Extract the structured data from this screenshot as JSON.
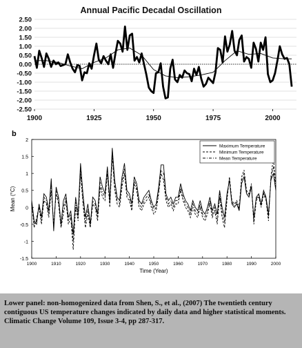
{
  "chart_data": [
    {
      "type": "line",
      "title": "Annual Pacific Decadal Oscillation",
      "xlabel": "",
      "ylabel": "",
      "xlim": [
        1900,
        2010
      ],
      "ylim": [
        -2.5,
        2.5
      ],
      "x_ticks": [
        "1900",
        "1925",
        "1950",
        "1975",
        "2000"
      ],
      "x_tick_values": [
        1900,
        1925,
        1950,
        1975,
        2000
      ],
      "y_ticks": [
        "2.50",
        "2.00",
        "1.50",
        "1.00",
        "0.50",
        "0.00",
        "-0.50",
        "-1.00",
        "-1.50",
        "-2.00",
        "-2.50"
      ],
      "y_tick_values": [
        2.5,
        2.0,
        1.5,
        1.0,
        0.5,
        0.0,
        -0.5,
        -1.0,
        -1.5,
        -2.0,
        -2.5
      ],
      "grid": "horizontal",
      "colors": {
        "annual": "#000000",
        "smoothed": "#000000",
        "zero": "#000000"
      },
      "series": [
        {
          "style": "thick",
          "x": [
            1900,
            1901,
            1902,
            1903,
            1904,
            1905,
            1906,
            1907,
            1908,
            1909,
            1910,
            1911,
            1912,
            1913,
            1914,
            1915,
            1916,
            1917,
            1918,
            1919,
            1920,
            1921,
            1922,
            1923,
            1924,
            1925,
            1926,
            1927,
            1928,
            1929,
            1930,
            1931,
            1932,
            1933,
            1934,
            1935,
            1936,
            1937,
            1938,
            1939,
            1940,
            1941,
            1942,
            1943,
            1944,
            1945,
            1946,
            1947,
            1948,
            1949,
            1950,
            1951,
            1952,
            1953,
            1954,
            1955,
            1956,
            1957,
            1958,
            1959,
            1960,
            1961,
            1962,
            1963,
            1964,
            1965,
            1966,
            1967,
            1968,
            1969,
            1970,
            1971,
            1972,
            1973,
            1974,
            1975,
            1976,
            1977,
            1978,
            1979,
            1980,
            1981,
            1982,
            1983,
            1984,
            1985,
            1986,
            1987,
            1988,
            1989,
            1990,
            1991,
            1992,
            1993,
            1994,
            1995,
            1996,
            1997,
            1998,
            1999,
            2000,
            2001,
            2002,
            2003,
            2004,
            2005,
            2006,
            2007,
            2008
          ],
          "values": [
            0.45,
            -0.2,
            0.75,
            0.35,
            -0.15,
            0.6,
            0.3,
            -0.15,
            0.2,
            0.0,
            0.1,
            -0.1,
            -0.05,
            0.0,
            0.55,
            0.1,
            -0.25,
            -0.45,
            -0.05,
            -0.1,
            -0.9,
            -0.45,
            -0.5,
            0.05,
            -0.25,
            0.5,
            1.15,
            0.25,
            0.05,
            0.45,
            0.2,
            0.0,
            0.55,
            -0.2,
            0.6,
            1.3,
            1.15,
            0.7,
            2.1,
            0.8,
            1.6,
            1.7,
            0.2,
            0.4,
            0.1,
            0.6,
            0.0,
            -0.6,
            -1.3,
            -1.5,
            -1.6,
            -0.5,
            -0.45,
            0.05,
            -1.25,
            -1.9,
            -1.85,
            -0.25,
            0.25,
            -0.85,
            -1.0,
            -0.6,
            -0.75,
            -0.35,
            -0.5,
            -0.55,
            -0.95,
            -0.25,
            -0.6,
            -0.15,
            -0.8,
            -1.25,
            -1.1,
            -0.75,
            -0.9,
            -1.05,
            -0.45,
            0.9,
            0.8,
            0.1,
            1.55,
            0.7,
            1.1,
            1.85,
            0.75,
            0.5,
            1.35,
            1.6,
            0.15,
            0.4,
            0.3,
            -0.2,
            1.2,
            0.85,
            0.15,
            1.2,
            0.8,
            1.5,
            -0.55,
            -1.0,
            -0.9,
            -0.5,
            0.2,
            1.0,
            0.55,
            0.3,
            0.35,
            0.0,
            -1.25
          ]
        },
        {
          "style": "thin",
          "x": [
            1900,
            1905,
            1910,
            1915,
            1920,
            1925,
            1930,
            1935,
            1940,
            1945,
            1950,
            1955,
            1960,
            1965,
            1970,
            1975,
            1980,
            1985,
            1990,
            1995,
            2000,
            2005,
            2008
          ],
          "values": [
            0.2,
            0.2,
            0.1,
            -0.1,
            -0.25,
            0.1,
            0.35,
            0.8,
            0.9,
            0.5,
            -0.3,
            -0.65,
            -0.75,
            -0.7,
            -0.6,
            -0.45,
            0.2,
            0.75,
            0.55,
            0.6,
            0.35,
            0.3,
            0.3
          ]
        }
      ]
    },
    {
      "type": "line",
      "panel_label": "b",
      "title": "",
      "xlabel": "Time (Year)",
      "ylabel": "Mean (°C)",
      "xlim": [
        1900,
        2000
      ],
      "ylim": [
        -1.5,
        2
      ],
      "x_ticks": [
        "1900",
        "1910",
        "1920",
        "1930",
        "1940",
        "1950",
        "1960",
        "1970",
        "1980",
        "1990",
        "2000"
      ],
      "x_tick_values": [
        1900,
        1910,
        1920,
        1930,
        1940,
        1950,
        1960,
        1970,
        1980,
        1990,
        2000
      ],
      "y_ticks": [
        "2",
        "1.5",
        "1",
        "0.5",
        "0",
        "-0.5",
        "-1",
        "-1.5"
      ],
      "y_tick_values": [
        2,
        1.5,
        1,
        0.5,
        0,
        -0.5,
        -1,
        -1.5
      ],
      "grid": "off",
      "legend": "top-right",
      "x": [
        1900,
        1901,
        1902,
        1903,
        1904,
        1905,
        1906,
        1907,
        1908,
        1909,
        1910,
        1911,
        1912,
        1913,
        1914,
        1915,
        1916,
        1917,
        1918,
        1919,
        1920,
        1921,
        1922,
        1923,
        1924,
        1925,
        1926,
        1927,
        1928,
        1929,
        1930,
        1931,
        1932,
        1933,
        1934,
        1935,
        1936,
        1937,
        1938,
        1939,
        1940,
        1941,
        1942,
        1943,
        1944,
        1945,
        1946,
        1947,
        1948,
        1949,
        1950,
        1951,
        1952,
        1953,
        1954,
        1955,
        1956,
        1957,
        1958,
        1959,
        1960,
        1961,
        1962,
        1963,
        1964,
        1965,
        1966,
        1967,
        1968,
        1969,
        1970,
        1971,
        1972,
        1973,
        1974,
        1975,
        1976,
        1977,
        1978,
        1979,
        1980,
        1981,
        1982,
        1983,
        1984,
        1985,
        1986,
        1987,
        1988,
        1989,
        1990,
        1991,
        1992,
        1993,
        1994,
        1995,
        1996,
        1997,
        1998,
        1999,
        2000
      ],
      "series": [
        {
          "name": "Maximum Temperature",
          "dash": "solid",
          "values": [
            0.2,
            -0.4,
            -0.5,
            0.1,
            -0.3,
            0.4,
            0.3,
            -0.1,
            0.85,
            -0.7,
            0.6,
            0.3,
            -0.5,
            0.2,
            0.4,
            -0.3,
            -0.1,
            -0.8,
            0.3,
            -0.2,
            1.3,
            0.4,
            -0.3,
            0.1,
            -0.5,
            0.3,
            0.2,
            -0.2,
            0.9,
            0.6,
            0.4,
            1.2,
            0.2,
            1.75,
            0.8,
            0.3,
            0.2,
            0.9,
            1.3,
            0.5,
            0.4,
            0.1,
            0.9,
            0.7,
            0.2,
            0.1,
            0.3,
            0.4,
            0.5,
            0.2,
            0.0,
            0.1,
            0.6,
            1.25,
            1.25,
            0.4,
            0.2,
            0.3,
            0.1,
            0.3,
            0.3,
            0.7,
            0.4,
            0.2,
            0.1,
            -0.1,
            0.2,
            0.0,
            -0.1,
            0.2,
            -0.1,
            -0.2,
            0.0,
            0.3,
            -0.1,
            0.1,
            -0.2,
            0.5,
            0.0,
            -0.3,
            0.4,
            0.8,
            0.1,
            0.0,
            0.1,
            -0.1,
            0.7,
            0.9,
            0.4,
            0.3,
            0.6,
            -0.3,
            0.3,
            0.4,
            0.1,
            0.5,
            0.3,
            -0.2,
            0.8,
            1.0,
            0.5
          ]
        },
        {
          "name": "Minimum Temperature",
          "dash": "dashed",
          "values": [
            0.1,
            -0.6,
            -0.3,
            0.0,
            -0.5,
            0.2,
            0.1,
            -0.3,
            0.5,
            -0.5,
            0.4,
            0.1,
            -0.6,
            -0.2,
            0.2,
            -0.5,
            -0.3,
            -1.25,
            0.0,
            -0.4,
            1.0,
            0.1,
            -0.6,
            -0.2,
            -0.6,
            0.1,
            0.0,
            -0.4,
            0.6,
            0.3,
            0.2,
            1.0,
            0.0,
            1.5,
            0.5,
            0.1,
            0.0,
            0.6,
            1.0,
            0.3,
            0.2,
            -0.1,
            0.7,
            0.5,
            0.0,
            -0.1,
            0.1,
            0.2,
            0.3,
            0.0,
            -0.2,
            -0.1,
            0.4,
            1.0,
            0.8,
            0.2,
            0.0,
            0.1,
            -0.1,
            0.1,
            0.1,
            0.5,
            0.2,
            0.0,
            -0.1,
            -0.3,
            0.0,
            -0.2,
            -0.3,
            0.0,
            -0.3,
            -0.4,
            -0.2,
            0.1,
            -0.3,
            -0.1,
            -0.5,
            0.3,
            -0.3,
            -0.6,
            0.2,
            0.9,
            0.2,
            0.1,
            0.2,
            0.0,
            0.9,
            1.1,
            0.5,
            0.4,
            0.7,
            -0.5,
            0.2,
            0.3,
            0.0,
            0.4,
            0.2,
            -0.4,
            0.9,
            1.45,
            0.7
          ]
        },
        {
          "name": "Mean Temperature",
          "dash": "dashdot",
          "values": [
            0.15,
            -0.5,
            -0.4,
            0.05,
            -0.4,
            0.3,
            0.2,
            -0.2,
            0.7,
            -0.6,
            0.5,
            0.2,
            -0.55,
            0.0,
            0.3,
            -0.4,
            -0.2,
            -1.0,
            0.15,
            -0.3,
            1.15,
            0.25,
            -0.45,
            -0.05,
            -0.55,
            0.2,
            0.1,
            -0.3,
            0.75,
            0.45,
            0.3,
            1.1,
            0.1,
            1.6,
            0.65,
            0.2,
            0.1,
            0.75,
            1.15,
            0.4,
            0.3,
            0.0,
            0.8,
            0.6,
            0.1,
            0.0,
            0.2,
            0.3,
            0.4,
            0.1,
            -0.1,
            0.0,
            0.5,
            1.1,
            1.0,
            0.3,
            0.1,
            0.2,
            0.0,
            0.2,
            0.2,
            0.6,
            0.3,
            0.1,
            0.0,
            -0.2,
            0.1,
            -0.1,
            -0.2,
            0.1,
            -0.2,
            -0.3,
            -0.1,
            0.2,
            -0.2,
            0.0,
            -0.35,
            0.4,
            -0.15,
            -0.45,
            0.3,
            0.85,
            0.15,
            0.05,
            0.15,
            -0.05,
            0.8,
            1.0,
            0.45,
            0.35,
            0.65,
            -0.4,
            0.25,
            0.35,
            0.05,
            0.45,
            0.25,
            -0.3,
            0.85,
            1.2,
            0.6
          ]
        }
      ],
      "colors": {
        "lines": "#000000"
      }
    }
  ],
  "caption": {
    "text": "Lower panel: non-homogenized data from Shen, S., et al., (2007) The twentieth century contiguous US temperature changes indicated by daily data and higher statistical moments. Climatic Change Volume 109, Issue 3-4, pp 287-317.",
    "background": "#b5b5b5"
  }
}
